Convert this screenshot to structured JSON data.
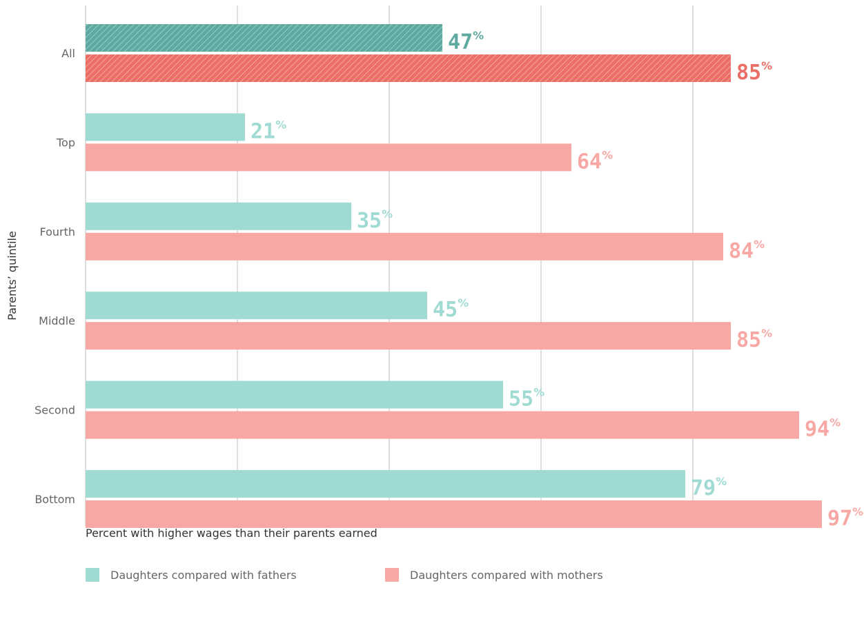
{
  "chart_data": {
    "type": "bar",
    "orientation": "horizontal",
    "categories": [
      "All",
      "Top",
      "Fourth",
      "Middle",
      "Second",
      "Bottom"
    ],
    "series": [
      {
        "name": "Daughters compared with fathers",
        "values": [
          47,
          21,
          35,
          45,
          55,
          79
        ]
      },
      {
        "name": "Daughters compared with mothers",
        "values": [
          85,
          64,
          84,
          85,
          94,
          97
        ]
      }
    ],
    "value_suffix": "%",
    "xlabel": "Percent with higher wages than their parents earned",
    "ylabel": "Parents’ quintile",
    "xticks": [
      "0",
      "20",
      "40",
      "60",
      "80"
    ],
    "xlim": [
      0,
      100
    ],
    "grid": true,
    "legend": "bottom",
    "highlight_category": "All",
    "colors": {
      "fathers": "#a0dbd3",
      "mothers": "#f8a8a4",
      "fathers_highlight": "#5fa9a0",
      "mothers_highlight": "#ea6f66",
      "grid": "#bdbdbd"
    }
  }
}
